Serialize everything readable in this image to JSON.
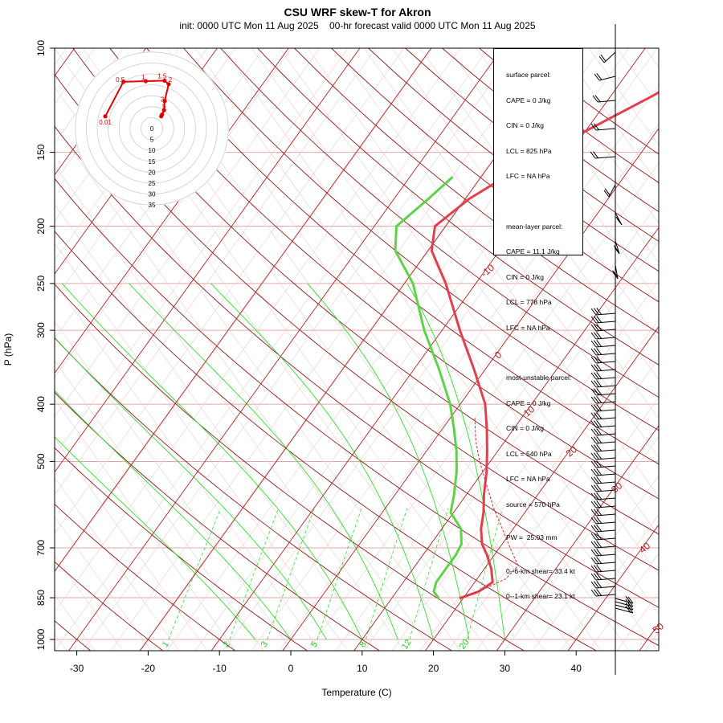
{
  "title": "CSU WRF skew-T for Akron",
  "subtitle": "init: 0000 UTC Mon 11 Aug 2025    00-hr forecast valid 0000 UTC Mon 11 Aug 2025",
  "chart_data": {
    "type": "line",
    "title": "CSU WRF skew-T for Akron",
    "xlabel": "Temperature (C)",
    "ylabel": "P (hPa)",
    "x_ticks": [
      "-30",
      "-20",
      "-10",
      "0",
      "10",
      "20",
      "30",
      "40"
    ],
    "p_ticks": [
      "100",
      "150",
      "200",
      "250",
      "300",
      "400",
      "500",
      "700",
      "850",
      "1000"
    ],
    "isotherm_labels": [
      "-10",
      "0",
      "10",
      "20",
      "30",
      "40",
      "50"
    ],
    "mixing_ratio_labels": [
      "1",
      "2",
      "3",
      "5",
      "8",
      "12",
      "20"
    ],
    "series": [
      {
        "name": "temperature",
        "color": "#e0404f",
        "points": [
          [
            852,
            19.5
          ],
          [
            830,
            21.5
          ],
          [
            800,
            22.5
          ],
          [
            760,
            21.0
          ],
          [
            720,
            19.0
          ],
          [
            690,
            17.2
          ],
          [
            650,
            15.5
          ],
          [
            610,
            14.2
          ],
          [
            570,
            12.5
          ],
          [
            520,
            10.5
          ],
          [
            480,
            8.5
          ],
          [
            440,
            6.2
          ],
          [
            400,
            3.5
          ],
          [
            350,
            -1.5
          ],
          [
            300,
            -7.5
          ],
          [
            250,
            -14.2
          ],
          [
            220,
            -19.5
          ],
          [
            200,
            -21.5
          ],
          [
            180,
            -19.5
          ],
          [
            150,
            -13.5
          ],
          [
            120,
            -4.0
          ],
          [
            105,
            0.5
          ]
        ]
      },
      {
        "name": "dewpoint",
        "color": "#5fd14a",
        "points": [
          [
            852,
            16.6
          ],
          [
            830,
            15.2
          ],
          [
            800,
            14.6
          ],
          [
            760,
            14.6
          ],
          [
            720,
            14.6
          ],
          [
            690,
            14.3
          ],
          [
            650,
            12.7
          ],
          [
            610,
            9.6
          ],
          [
            570,
            8.3
          ],
          [
            520,
            6.3
          ],
          [
            480,
            4.2
          ],
          [
            440,
            1.6
          ],
          [
            400,
            -1.4
          ],
          [
            350,
            -6.4
          ],
          [
            300,
            -12.5
          ],
          [
            250,
            -18.8
          ],
          [
            220,
            -24.6
          ],
          [
            200,
            -26.9
          ],
          [
            180,
            -25.2
          ],
          [
            165,
            -24.0
          ]
        ]
      },
      {
        "name": "parcel",
        "color": "#c0303a",
        "points": [
          [
            852,
            19.5
          ],
          [
            825,
            21.8
          ],
          [
            790,
            24.0
          ],
          [
            750,
            24.4
          ],
          [
            700,
            21.5
          ],
          [
            650,
            18.5
          ],
          [
            600,
            15.2
          ],
          [
            550,
            12.0
          ],
          [
            500,
            8.5
          ],
          [
            460,
            5.8
          ],
          [
            420,
            3.3
          ]
        ]
      }
    ],
    "hodograph": {
      "range_labels": [
        "0",
        "5",
        "10",
        "15",
        "20",
        "25",
        "30",
        "35"
      ],
      "height_labels": [
        "0.01",
        "0.5",
        "1",
        "1.5",
        "2",
        "3",
        "5"
      ],
      "points_kt": [
        [
          -21.3,
          5.6
        ],
        [
          -13.0,
          21.4
        ],
        [
          -2.8,
          21.7
        ],
        [
          5.8,
          21.9
        ],
        [
          7.7,
          20.3
        ],
        [
          5.9,
          12.6
        ],
        [
          5.6,
          8.4
        ],
        [
          4.3,
          5.6
        ],
        [
          4.7,
          6.4
        ]
      ]
    }
  },
  "info_box": {
    "surface": [
      "surface parcel:",
      "CAPE = 0 J/kg",
      "CIN = 0 J/kg",
      "LCL = 825 hPa",
      "LFC = NA hPa"
    ],
    "mean_layer": [
      "mean-layer parcel:",
      "CAPE = 11.1 J/kg",
      "CIN = 0 J/kg",
      "LCL = 778 hPa",
      "LFC = NA hPa"
    ],
    "most_unstable": [
      "most-unstable parcel:",
      "CAPE = 0 J/kg",
      "CIN = 0 J/kg",
      "LCL = 540 hPa",
      "LFC = NA hPa",
      "source = 570 hPa"
    ],
    "pw": "PW =  25.03 mm",
    "shear": [
      "0--6-km shear= 33.4 kt",
      "0--1-km shear= 23.1 kt"
    ]
  },
  "colors": {
    "isotherm": "#b22222",
    "dry_adiabat": "#8b1a1a",
    "moist_adiabat": "#33dd33",
    "mixing_ratio": "#33dd33",
    "isobar": "#e0a8a8",
    "temperature": "#e0404f",
    "dewpoint": "#5fd14a",
    "hodograph": "#e00000"
  }
}
